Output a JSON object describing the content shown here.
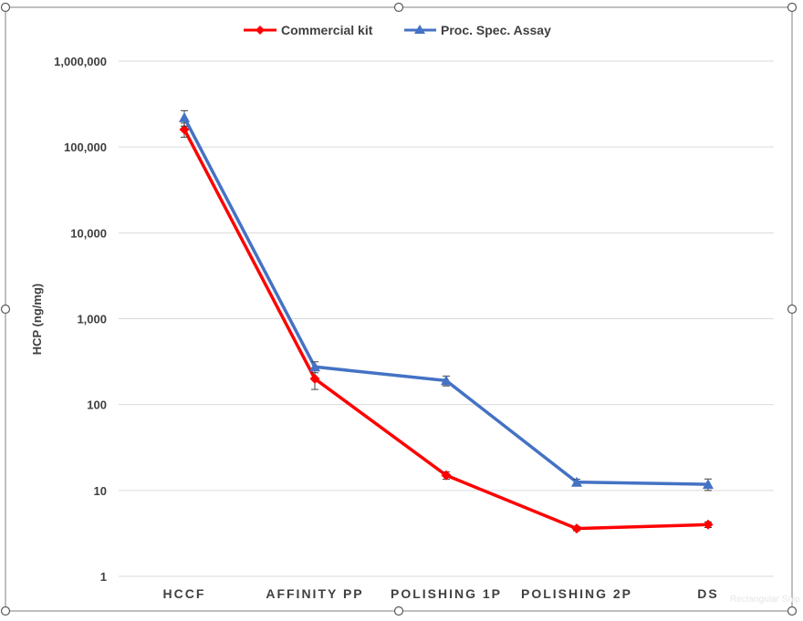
{
  "chart_data": {
    "type": "line",
    "ylabel": "HCP (ng/mg)",
    "yscale": "log",
    "ylim": [
      1,
      1000000
    ],
    "yticks": [
      1,
      10,
      100,
      1000,
      10000,
      100000,
      1000000
    ],
    "ytick_labels": [
      "1",
      "10",
      "100",
      "1,000",
      "10,000",
      "100,000",
      "1,000,000"
    ],
    "categories": [
      "HCCF",
      "AFFINITY PP",
      "POLISHING 1P",
      "POLISHING 2P",
      "DS"
    ],
    "grid": true,
    "legend_position": "top",
    "series": [
      {
        "name": "Commercial kit",
        "color": "#ff0000",
        "marker": "diamond",
        "values": [
          160000,
          200,
          15,
          3.6,
          4.0
        ],
        "errors": [
          30000,
          50,
          1.5,
          0.2,
          0.3
        ]
      },
      {
        "name": "Proc. Spec. Assay",
        "color": "#4472c4",
        "marker": "triangle",
        "values": [
          220000,
          275,
          190,
          12.5,
          11.8
        ],
        "errors": [
          45000,
          40,
          25,
          1.0,
          1.8
        ]
      }
    ]
  },
  "watermark_text": "Rectangular Snip"
}
